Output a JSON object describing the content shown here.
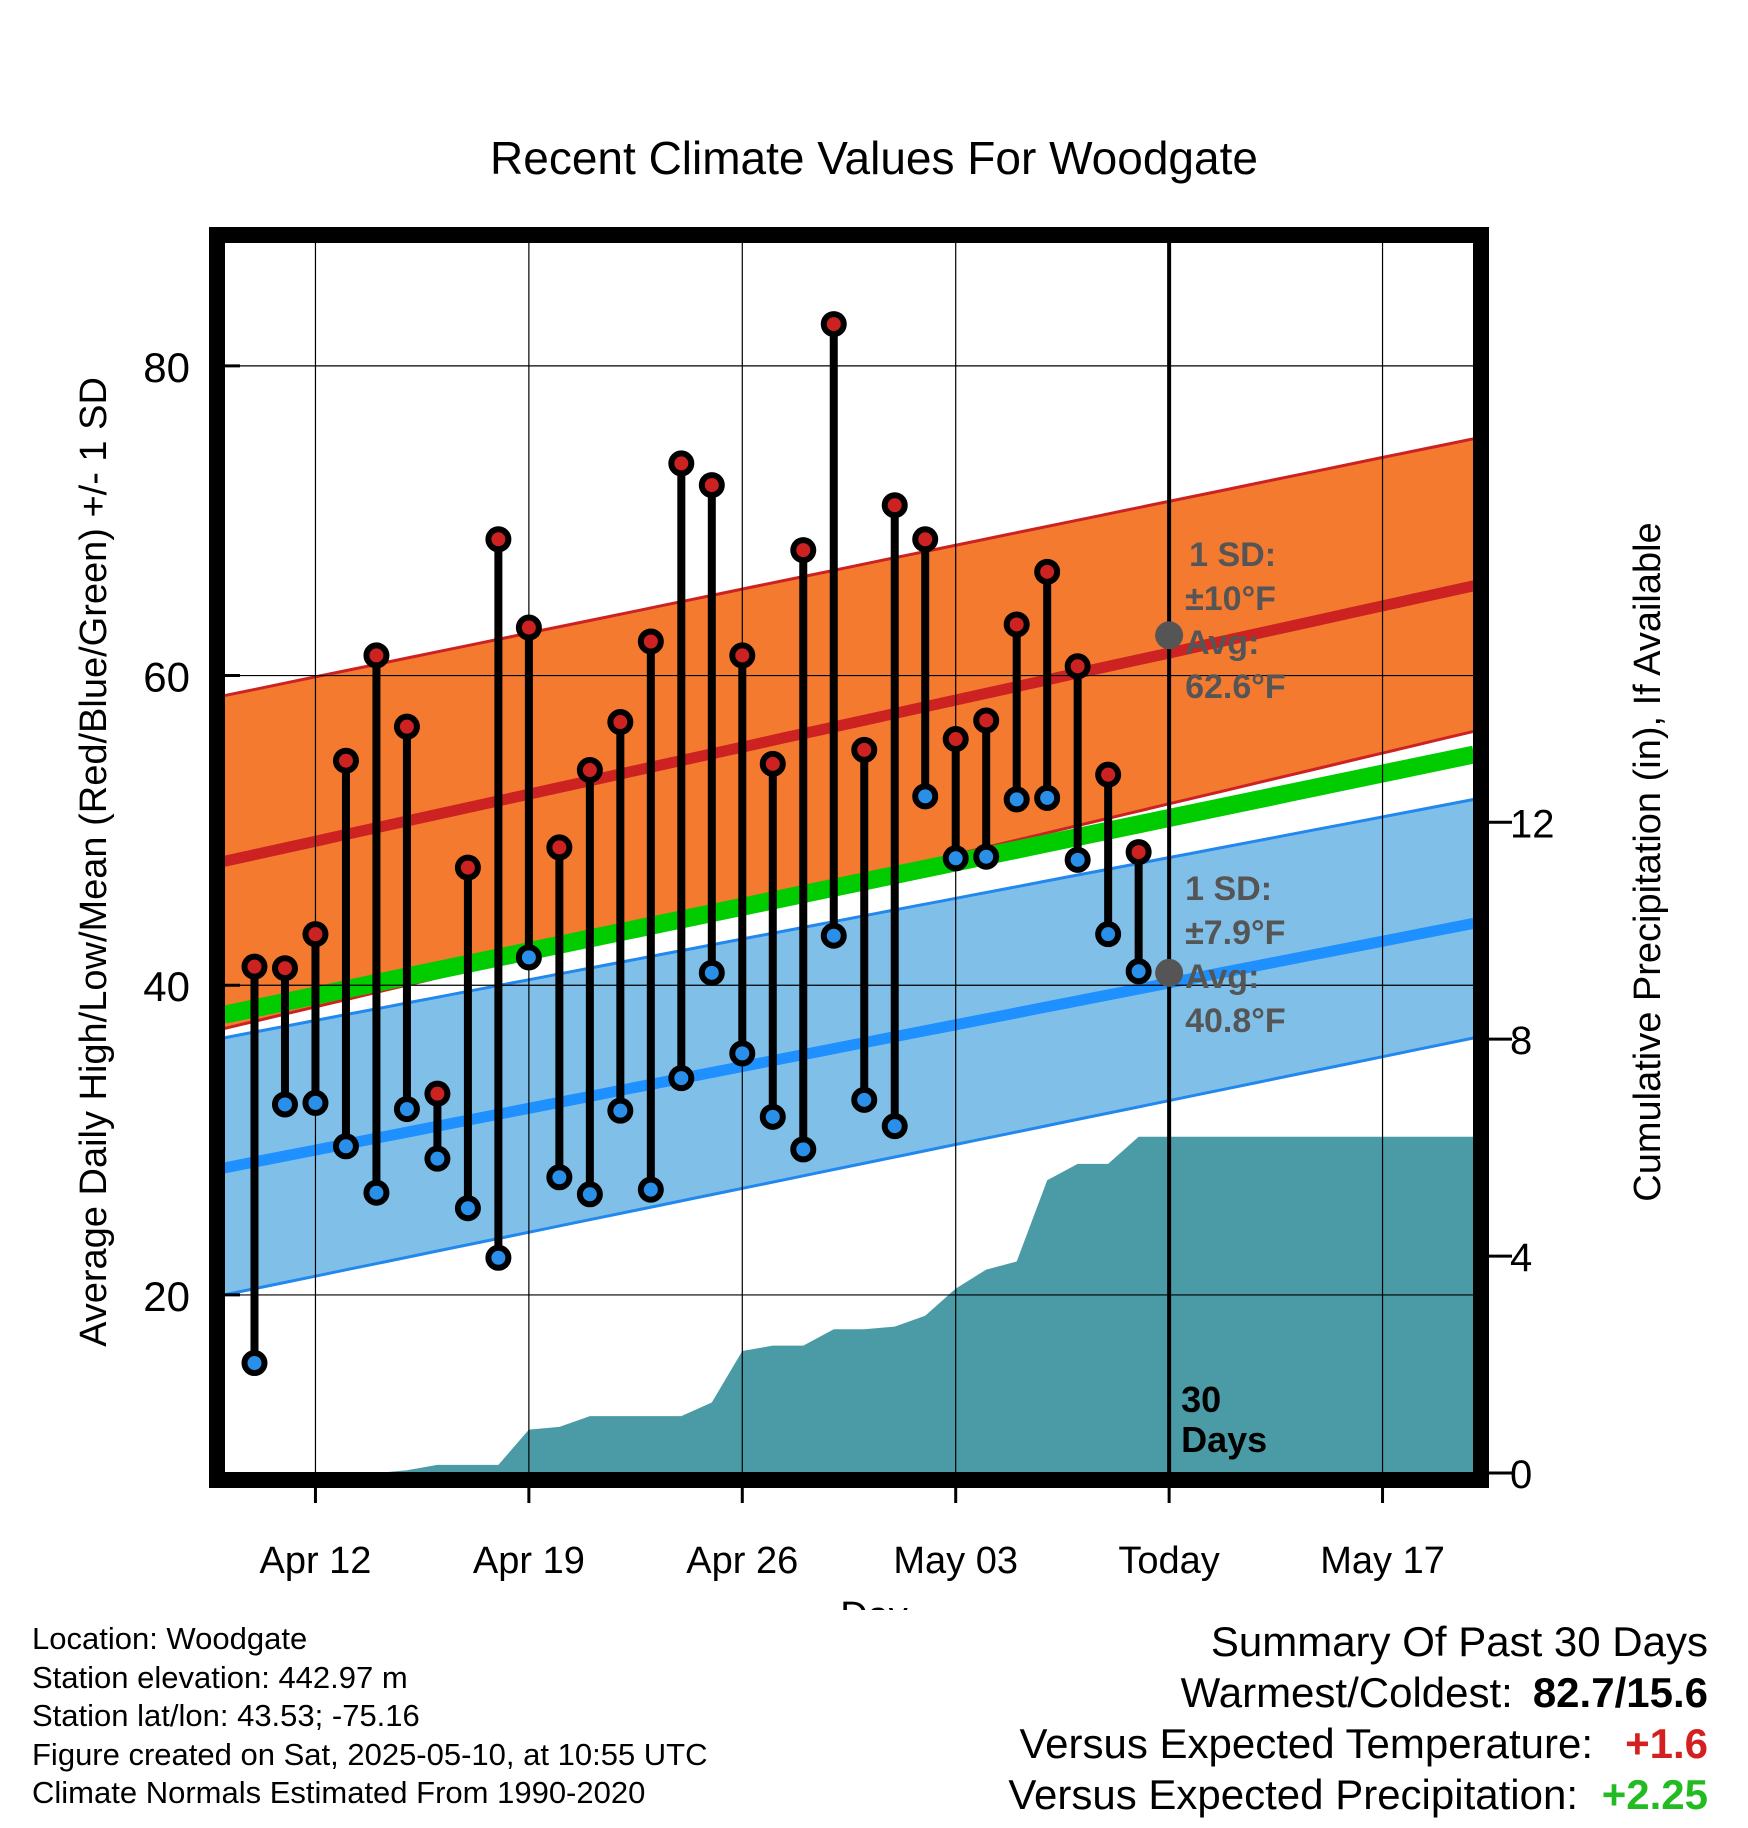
{
  "colors": {
    "high_band": "#f47a30",
    "high_band_edge": "#cc2222",
    "high_mean": "#cc2222",
    "low_band": "#80c0e8",
    "low_band_edge": "#2288ee",
    "low_mean": "#1e90ff",
    "mean_line": "#00cc00",
    "precip": "#4a9ba6",
    "high_marker": "#cc2222",
    "low_marker": "#2a8fe8",
    "annotation": "#555555",
    "warm_value": "#d42020",
    "precip_value": "#22bb22"
  },
  "chart_data": {
    "type": "line",
    "title": "Recent Climate Values For Woodgate",
    "xlabel": "Day",
    "ylabel": "Average Daily High/Low/Mean (Red/Blue/Green) +/- 1 SD",
    "y2label": "Cumulative Precipitation (in), If Available",
    "x_tick_labels": [
      "Apr 12",
      "Apr 19",
      "Apr 26",
      "May 03",
      "Today",
      "May 17"
    ],
    "y_ticks": [
      20,
      40,
      60,
      80
    ],
    "y2_ticks": [
      0,
      4,
      8,
      12
    ],
    "ylim": [
      8.5,
      88
    ],
    "y2lim": [
      0,
      22.7
    ],
    "x_range": [
      "2025-04-09",
      "2025-05-20"
    ],
    "grid": true,
    "today": "2025-05-10",
    "today_label": "30 Days",
    "normals": {
      "dates": [
        "2025-04-09",
        "2025-05-20"
      ],
      "high_mean": [
        48.0,
        65.8
      ],
      "high_upper": [
        58.7,
        75.3
      ],
      "high_lower": [
        37.2,
        56.4
      ],
      "low_mean": [
        28.2,
        44.0
      ],
      "low_upper": [
        36.6,
        52.0
      ],
      "low_lower": [
        20.0,
        36.6
      ],
      "mean": [
        38.1,
        54.9
      ]
    },
    "annotations": {
      "high": {
        "sd": "1 SD:",
        "sd_value": "±10°F",
        "avg": "Avg:",
        "avg_value": "62.6°F",
        "avg_number": 62.6
      },
      "low": {
        "sd": "1 SD:",
        "sd_value": "±7.9°F",
        "avg": "Avg:",
        "avg_value": "40.8°F",
        "avg_number": 40.8
      }
    },
    "series": [
      {
        "dates": [
          "2025-04-10",
          "2025-04-11",
          "2025-04-12",
          "2025-04-13",
          "2025-04-14",
          "2025-04-15",
          "2025-04-16",
          "2025-04-17",
          "2025-04-18",
          "2025-04-19",
          "2025-04-20",
          "2025-04-21",
          "2025-04-22",
          "2025-04-23",
          "2025-04-24",
          "2025-04-25",
          "2025-04-26",
          "2025-04-27",
          "2025-04-28",
          "2025-04-29",
          "2025-04-30",
          "2025-05-01",
          "2025-05-02",
          "2025-05-03",
          "2025-05-04",
          "2025-05-05",
          "2025-05-06",
          "2025-05-07",
          "2025-05-08",
          "2025-05-09"
        ],
        "high": [
          41.2,
          41.1,
          43.3,
          54.5,
          61.3,
          56.7,
          33.0,
          47.6,
          68.8,
          63.1,
          48.9,
          53.9,
          57.0,
          62.2,
          73.7,
          72.3,
          61.3,
          54.3,
          68.1,
          82.7,
          55.2,
          71.0,
          68.8,
          55.9,
          57.1,
          63.3,
          66.7,
          60.6,
          53.6,
          48.6
        ],
        "low": [
          15.6,
          32.3,
          32.4,
          29.6,
          26.6,
          32.0,
          28.8,
          25.6,
          22.4,
          41.8,
          27.6,
          26.5,
          31.9,
          26.8,
          34.0,
          40.8,
          35.6,
          31.5,
          29.4,
          43.2,
          32.6,
          30.9,
          52.2,
          48.2,
          48.3,
          52.0,
          52.1,
          48.1,
          43.3,
          40.9
        ]
      }
    ],
    "precipitation": {
      "dates": [
        "2025-04-09",
        "2025-04-14",
        "2025-04-15",
        "2025-04-16",
        "2025-04-17",
        "2025-04-18",
        "2025-04-19",
        "2025-04-20",
        "2025-04-21",
        "2025-04-22",
        "2025-04-23",
        "2025-04-24",
        "2025-04-25",
        "2025-04-26",
        "2025-04-27",
        "2025-04-28",
        "2025-04-29",
        "2025-04-30",
        "2025-05-01",
        "2025-05-02",
        "2025-05-03",
        "2025-05-04",
        "2025-05-05",
        "2025-05-06",
        "2025-05-07",
        "2025-05-08",
        "2025-05-09",
        "2025-05-20"
      ],
      "values": [
        0.0,
        0.0,
        0.05,
        0.15,
        0.15,
        0.15,
        0.8,
        0.85,
        1.05,
        1.05,
        1.05,
        1.05,
        1.3,
        2.25,
        2.35,
        2.35,
        2.65,
        2.65,
        2.7,
        2.9,
        3.4,
        3.75,
        3.9,
        5.4,
        5.7,
        5.7,
        6.2,
        6.2
      ]
    }
  },
  "footer": {
    "location": "Location: Woodgate",
    "elevation": "Station elevation: 442.97 m",
    "latlon": "Station lat/lon: 43.53; -75.16",
    "created": "Figure created on Sat, 2025-05-10, at 10:55 UTC",
    "normals": "Climate Normals Estimated From 1990-2020",
    "summary_title": "Summary Of Past 30 Days",
    "warmest_label": "Warmest/Coldest:",
    "warmest_value": "82.7/15.6",
    "temp_label": "Versus Expected Temperature:",
    "temp_value": "+1.6",
    "precip_label": "Versus Expected Precipitation:",
    "precip_value": "+2.25"
  }
}
